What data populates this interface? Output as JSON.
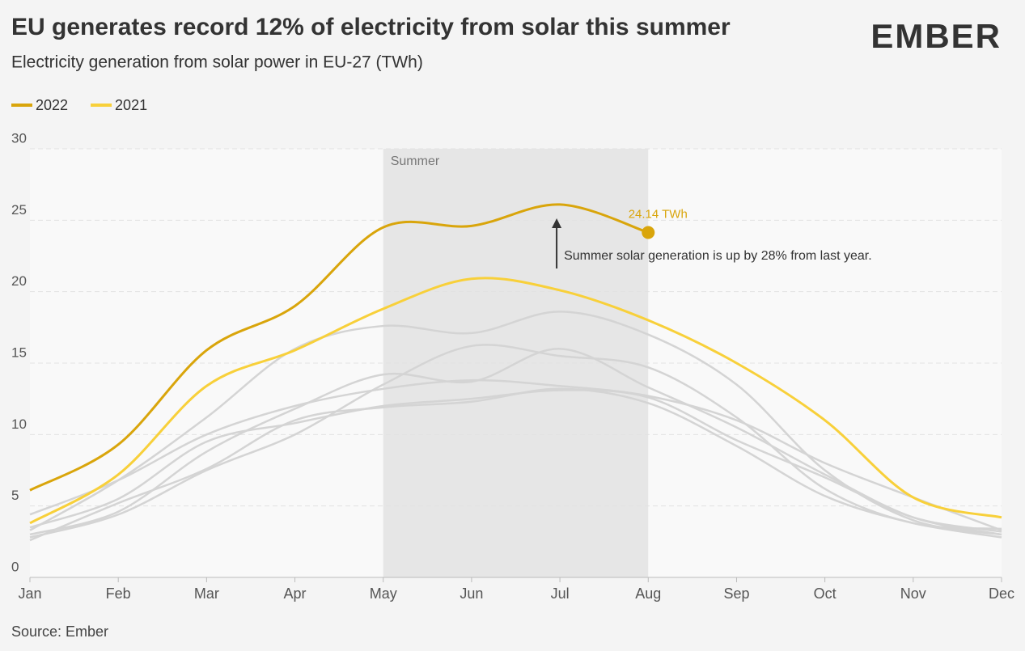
{
  "chart_data": {
    "type": "line",
    "title": "EU generates record 12% of electricity from solar this summer",
    "subtitle": "Electricity generation from solar power in EU-27 (TWh)",
    "logo": "EMBER",
    "source": "Source: Ember",
    "categories": [
      "Jan",
      "Feb",
      "Mar",
      "Apr",
      "May",
      "Jun",
      "Jul",
      "Aug",
      "Sep",
      "Oct",
      "Nov",
      "Dec"
    ],
    "ylim": [
      0,
      30
    ],
    "yticks": [
      0,
      5,
      10,
      15,
      20,
      25,
      30
    ],
    "grid": true,
    "legend": "top-left",
    "highlight": {
      "label": "Summer",
      "from": "May",
      "to": "Aug"
    },
    "annotation": {
      "text": "Summer solar generation is up by 28% from last year.",
      "at": "Jul"
    },
    "series": [
      {
        "color": "#d4d4d4",
        "values": [
          4.4,
          6.8,
          10.0,
          12.0,
          13.2,
          13.8,
          13.4,
          12.7,
          11.0,
          8.0,
          5.6,
          3.3
        ]
      },
      {
        "color": "#d4d4d4",
        "values": [
          3.3,
          6.8,
          11.2,
          16.0,
          17.6,
          17.1,
          18.6,
          17.0,
          13.5,
          7.5,
          4.0,
          3.0
        ]
      },
      {
        "color": "#d4d4d4",
        "values": [
          3.0,
          4.6,
          8.8,
          11.8,
          14.2,
          13.7,
          16.0,
          13.3,
          10.5,
          7.2,
          4.2,
          3.0
        ]
      },
      {
        "color": "#d4d4d4",
        "values": [
          2.8,
          4.4,
          7.5,
          10.0,
          13.5,
          16.2,
          15.5,
          14.7,
          11.2,
          6.2,
          3.8,
          3.4
        ]
      },
      {
        "color": "#d4d4d4",
        "values": [
          2.6,
          5.2,
          7.6,
          11.0,
          11.9,
          12.3,
          13.2,
          12.2,
          9.2,
          5.7,
          3.8,
          2.8
        ]
      },
      {
        "color": "#d4d4d4",
        "values": [
          3.5,
          5.5,
          9.5,
          10.8,
          12.0,
          12.5,
          13.1,
          12.6,
          9.6,
          7.0,
          4.2,
          3.2
        ]
      },
      {
        "name": "2021",
        "color": "#f8d03a",
        "values": [
          3.8,
          7.2,
          13.4,
          15.9,
          18.8,
          20.9,
          20.1,
          18.0,
          15.0,
          11.0,
          5.6,
          4.2
        ]
      },
      {
        "name": "2022",
        "color": "#d9a50b",
        "values": [
          6.1,
          9.3,
          15.9,
          19.0,
          24.5,
          24.6,
          26.1,
          24.14,
          null,
          null,
          null,
          null
        ],
        "value_labels": [
          null,
          null,
          null,
          null,
          null,
          null,
          null,
          "24.14 TWh",
          null,
          null,
          null,
          null
        ]
      }
    ]
  }
}
